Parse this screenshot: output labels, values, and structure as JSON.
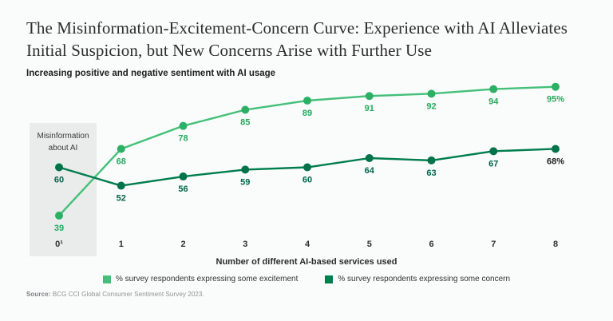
{
  "header": {
    "title": "The Misinformation-Excitement-Concern Curve: Experience with AI Alleviates Initial Suspicion, but New Concerns Arise with Further Use",
    "subtitle": "Increasing positive and negative sentiment with AI usage"
  },
  "chart_data": {
    "type": "line",
    "x": [
      0,
      1,
      2,
      3,
      4,
      5,
      6,
      7,
      8
    ],
    "categories": [
      "0¹",
      "1",
      "2",
      "3",
      "4",
      "5",
      "6",
      "7",
      "8"
    ],
    "xlabel": "Number of different AI-based services used",
    "ylim": [
      30,
      100
    ],
    "grid": false,
    "legend_position": "bottom",
    "annotation": {
      "label": "Misinformation about AI",
      "applies_to_x": "0¹",
      "box_color": "#eaebeb"
    },
    "series": [
      {
        "name": "excitement",
        "legend_label": "% survey respondents expressing some excitement",
        "values": [
          39,
          68,
          78,
          85,
          89,
          91,
          92,
          94,
          95
        ],
        "labels": [
          "39",
          "68",
          "78",
          "85",
          "89",
          "91",
          "92",
          "94",
          "95%"
        ],
        "color": "#44c07a",
        "dot_color": "#2bb065",
        "label_color": "#27a95d"
      },
      {
        "name": "concern",
        "legend_label": "% survey respondents expressing some concern",
        "values": [
          60,
          52,
          56,
          59,
          60,
          64,
          63,
          67,
          68
        ],
        "labels": [
          "60",
          "52",
          "56",
          "59",
          "60",
          "64",
          "63",
          "67",
          "68%"
        ],
        "color": "#007d4e",
        "dot_color": "#00734a",
        "label_color": "#00664a",
        "final_label_color": "#1f1f1f"
      }
    ],
    "tick_label_color": "#2f2f2f"
  },
  "source": {
    "prefix": "Source:",
    "text": " BCG CCI Global Consumer Sentiment Survey 2023."
  }
}
